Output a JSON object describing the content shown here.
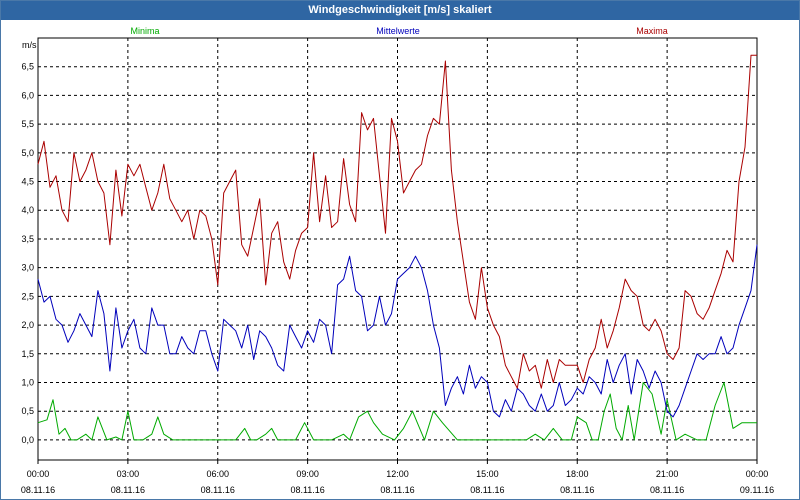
{
  "window": {
    "title": "Windgeschwindigkeit [m/s] skaliert"
  },
  "colors": {
    "min": "#00aa00",
    "mean": "#0000bb",
    "max": "#aa0000",
    "grid": "#000000"
  },
  "chart_data": {
    "type": "line",
    "title": "Windgeschwindigkeit [m/s] skaliert",
    "ylabel": "m/s",
    "xlabel": "",
    "xlim": [
      0,
      24
    ],
    "ylim": [
      -0.35,
      7.0
    ],
    "grid": true,
    "yticks": [
      "0,0",
      "0,5",
      "1,0",
      "1,5",
      "2,0",
      "2,5",
      "3,0",
      "3,5",
      "4,0",
      "4,5",
      "5,0",
      "5,5",
      "6,0",
      "6,5"
    ],
    "ytick_values": [
      0,
      0.5,
      1,
      1.5,
      2,
      2.5,
      3,
      3.5,
      4,
      4.5,
      5,
      5.5,
      6,
      6.5
    ],
    "xticks": [
      {
        "time": "00:00",
        "date": "08.11.16"
      },
      {
        "time": "03:00",
        "date": "08.11.16"
      },
      {
        "time": "06:00",
        "date": "08.11.16"
      },
      {
        "time": "09:00",
        "date": "08.11.16"
      },
      {
        "time": "12:00",
        "date": "08.11.16"
      },
      {
        "time": "15:00",
        "date": "08.11.16"
      },
      {
        "time": "18:00",
        "date": "08.11.16"
      },
      {
        "time": "21:00",
        "date": "08.11.16"
      },
      {
        "time": "00:00",
        "date": "09.11.16"
      }
    ],
    "xtick_hours": [
      0,
      3,
      6,
      9,
      12,
      15,
      18,
      21,
      24
    ],
    "series": [
      {
        "name": "Minima",
        "key": "min",
        "x": [
          0.0,
          0.3,
          0.5,
          0.7,
          0.9,
          1.1,
          1.3,
          1.6,
          1.8,
          2.0,
          2.3,
          2.6,
          2.8,
          3.0,
          3.2,
          3.5,
          3.8,
          4.0,
          4.2,
          4.5,
          5.0,
          5.5,
          6.0,
          6.3,
          6.6,
          6.9,
          7.1,
          7.3,
          7.6,
          7.8,
          8.0,
          8.3,
          8.6,
          8.9,
          9.2,
          9.5,
          9.8,
          10.2,
          10.4,
          10.7,
          11.0,
          11.2,
          11.5,
          11.9,
          12.2,
          12.5,
          12.9,
          13.2,
          13.5,
          14.0,
          14.5,
          14.8,
          15.0,
          15.3,
          15.6,
          16.0,
          16.3,
          16.6,
          16.9,
          17.2,
          17.5,
          17.8,
          18.0,
          18.3,
          18.5,
          18.7,
          18.9,
          19.1,
          19.3,
          19.5,
          19.7,
          19.9,
          20.2,
          20.5,
          20.8,
          21.0,
          21.3,
          21.6,
          22.0,
          22.3,
          22.6,
          22.9,
          23.2,
          23.5,
          23.8,
          24.0
        ],
        "y": [
          0.3,
          0.35,
          0.7,
          0.1,
          0.2,
          0.0,
          0.0,
          0.1,
          0.0,
          0.4,
          0.0,
          0.05,
          0.0,
          0.5,
          0.0,
          0.0,
          0.1,
          0.4,
          0.1,
          0.0,
          0.0,
          0.0,
          0.0,
          0.0,
          0.0,
          0.2,
          0.0,
          0.0,
          0.1,
          0.2,
          0.0,
          0.0,
          0.0,
          0.3,
          0.0,
          0.0,
          0.0,
          0.1,
          0.0,
          0.4,
          0.5,
          0.3,
          0.1,
          0.0,
          0.2,
          0.5,
          0.0,
          0.5,
          0.3,
          0.0,
          0.0,
          0.0,
          0.0,
          0.0,
          0.0,
          0.0,
          0.0,
          0.1,
          0.0,
          0.2,
          0.0,
          0.0,
          0.4,
          0.3,
          0.0,
          0.0,
          0.5,
          0.8,
          0.2,
          0.0,
          0.6,
          0.0,
          1.0,
          0.8,
          0.1,
          0.7,
          0.0,
          0.1,
          0.0,
          0.0,
          0.6,
          1.0,
          0.2,
          0.3,
          0.3,
          0.3
        ]
      },
      {
        "name": "Mittelwerte",
        "key": "mean",
        "x": [
          0.0,
          0.2,
          0.4,
          0.6,
          0.8,
          1.0,
          1.2,
          1.4,
          1.6,
          1.8,
          2.0,
          2.2,
          2.4,
          2.6,
          2.8,
          3.0,
          3.2,
          3.4,
          3.6,
          3.8,
          4.0,
          4.2,
          4.4,
          4.6,
          4.8,
          5.0,
          5.2,
          5.4,
          5.6,
          5.8,
          6.0,
          6.2,
          6.4,
          6.6,
          6.8,
          7.0,
          7.2,
          7.4,
          7.6,
          7.8,
          8.0,
          8.2,
          8.4,
          8.6,
          8.8,
          9.0,
          9.2,
          9.4,
          9.6,
          9.8,
          10.0,
          10.2,
          10.4,
          10.6,
          10.8,
          11.0,
          11.2,
          11.4,
          11.6,
          11.8,
          12.0,
          12.2,
          12.4,
          12.6,
          12.8,
          13.0,
          13.2,
          13.4,
          13.6,
          13.8,
          14.0,
          14.2,
          14.4,
          14.6,
          14.8,
          15.0,
          15.2,
          15.4,
          15.6,
          15.8,
          16.0,
          16.2,
          16.4,
          16.6,
          16.8,
          17.0,
          17.2,
          17.4,
          17.6,
          17.8,
          18.0,
          18.2,
          18.4,
          18.6,
          18.8,
          19.0,
          19.2,
          19.4,
          19.6,
          19.8,
          20.0,
          20.2,
          20.4,
          20.6,
          20.8,
          21.0,
          21.2,
          21.4,
          21.6,
          21.8,
          22.0,
          22.2,
          22.4,
          22.6,
          22.8,
          23.0,
          23.2,
          23.4,
          23.6,
          23.8,
          24.0
        ],
        "y": [
          2.8,
          2.4,
          2.5,
          2.1,
          2.0,
          1.7,
          1.9,
          2.2,
          2.0,
          1.8,
          2.6,
          2.2,
          1.2,
          2.3,
          1.6,
          1.9,
          2.1,
          1.6,
          1.5,
          2.3,
          2.0,
          2.0,
          1.5,
          1.5,
          1.8,
          1.6,
          1.5,
          1.9,
          1.9,
          1.5,
          1.2,
          2.1,
          2.0,
          1.9,
          1.6,
          2.0,
          1.4,
          1.9,
          1.8,
          1.6,
          1.3,
          1.2,
          2.0,
          1.8,
          1.6,
          1.9,
          1.7,
          2.1,
          2.0,
          1.5,
          2.7,
          2.8,
          3.2,
          2.6,
          2.5,
          1.9,
          2.0,
          2.5,
          2.0,
          2.2,
          2.8,
          2.9,
          3.0,
          3.2,
          3.0,
          2.6,
          2.0,
          1.6,
          0.6,
          0.9,
          1.1,
          0.8,
          1.3,
          0.9,
          1.1,
          1.0,
          0.5,
          0.4,
          0.7,
          0.5,
          0.9,
          0.8,
          0.6,
          0.5,
          0.8,
          0.5,
          0.6,
          1.0,
          0.6,
          0.7,
          0.9,
          0.8,
          1.1,
          1.0,
          0.8,
          1.4,
          1.0,
          1.3,
          1.5,
          0.8,
          1.4,
          1.2,
          0.9,
          1.2,
          1.0,
          0.5,
          0.4,
          0.6,
          0.9,
          1.2,
          1.5,
          1.4,
          1.5,
          1.5,
          1.8,
          1.5,
          1.6,
          2.0,
          2.3,
          2.6,
          3.4
        ]
      },
      {
        "name": "Maxima",
        "key": "max",
        "x": [
          0.0,
          0.2,
          0.4,
          0.6,
          0.8,
          1.0,
          1.2,
          1.4,
          1.6,
          1.8,
          2.0,
          2.2,
          2.4,
          2.6,
          2.8,
          3.0,
          3.2,
          3.4,
          3.6,
          3.8,
          4.0,
          4.2,
          4.4,
          4.6,
          4.8,
          5.0,
          5.2,
          5.4,
          5.6,
          5.8,
          6.0,
          6.2,
          6.4,
          6.6,
          6.8,
          7.0,
          7.2,
          7.4,
          7.6,
          7.8,
          8.0,
          8.2,
          8.4,
          8.6,
          8.8,
          9.0,
          9.2,
          9.4,
          9.6,
          9.8,
          10.0,
          10.2,
          10.4,
          10.6,
          10.8,
          11.0,
          11.2,
          11.4,
          11.6,
          11.8,
          12.0,
          12.2,
          12.4,
          12.6,
          12.8,
          13.0,
          13.2,
          13.4,
          13.6,
          13.8,
          14.0,
          14.2,
          14.4,
          14.6,
          14.8,
          15.0,
          15.2,
          15.4,
          15.6,
          15.8,
          16.0,
          16.2,
          16.4,
          16.6,
          16.8,
          17.0,
          17.2,
          17.4,
          17.6,
          17.8,
          18.0,
          18.2,
          18.4,
          18.6,
          18.8,
          19.0,
          19.2,
          19.4,
          19.6,
          19.8,
          20.0,
          20.2,
          20.4,
          20.6,
          20.8,
          21.0,
          21.2,
          21.4,
          21.6,
          21.8,
          22.0,
          22.2,
          22.4,
          22.6,
          22.8,
          23.0,
          23.2,
          23.4,
          23.6,
          23.8,
          24.0
        ],
        "y": [
          4.8,
          5.2,
          4.4,
          4.6,
          4.0,
          3.8,
          5.0,
          4.5,
          4.7,
          5.0,
          4.5,
          4.3,
          3.4,
          4.7,
          3.9,
          4.8,
          4.6,
          4.8,
          4.4,
          4.0,
          4.3,
          4.8,
          4.2,
          4.0,
          3.8,
          4.0,
          3.5,
          4.0,
          3.9,
          3.5,
          2.7,
          4.3,
          4.5,
          4.7,
          3.4,
          3.2,
          3.7,
          4.2,
          2.7,
          3.6,
          3.8,
          3.1,
          2.8,
          3.3,
          3.6,
          3.7,
          5.0,
          3.8,
          4.6,
          3.7,
          3.8,
          4.9,
          4.1,
          3.8,
          5.7,
          5.4,
          5.6,
          4.6,
          3.6,
          5.6,
          5.2,
          4.3,
          4.5,
          4.7,
          4.8,
          5.3,
          5.6,
          5.5,
          6.6,
          4.7,
          3.8,
          3.1,
          2.4,
          2.1,
          3.0,
          2.3,
          2.0,
          1.8,
          1.3,
          1.1,
          0.9,
          1.5,
          1.2,
          1.3,
          0.9,
          1.4,
          1.0,
          1.4,
          1.3,
          1.3,
          1.3,
          1.0,
          1.4,
          1.6,
          2.1,
          1.6,
          1.9,
          2.3,
          2.8,
          2.6,
          2.5,
          2.0,
          1.9,
          2.1,
          1.9,
          1.5,
          1.4,
          1.6,
          2.6,
          2.5,
          2.2,
          2.1,
          2.3,
          2.6,
          2.9,
          3.3,
          3.1,
          4.5,
          5.1,
          6.7,
          6.7
        ]
      }
    ]
  }
}
